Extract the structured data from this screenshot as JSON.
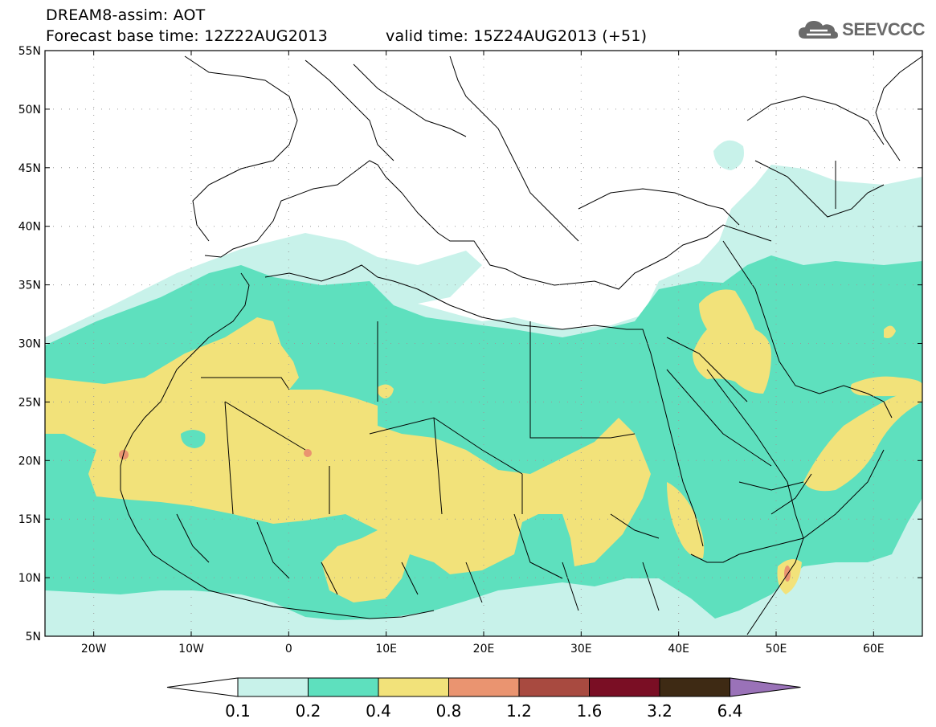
{
  "header": {
    "title_line1": "DREAM8-assim: AOT",
    "forecast_label": "Forecast base time: 12Z22AUG2013",
    "valid_label": "valid time: 15Z24AUG2013 (+51)"
  },
  "logo": {
    "text": "SEEVCCC",
    "icon": "cloud-icon"
  },
  "axes": {
    "lat_labels": [
      "55N",
      "50N",
      "45N",
      "40N",
      "35N",
      "30N",
      "25N",
      "20N",
      "15N",
      "10N",
      "5N"
    ],
    "lon_labels": [
      "20W",
      "10W",
      "0",
      "10E",
      "20E",
      "30E",
      "40E",
      "50E",
      "60E"
    ]
  },
  "colorbar": {
    "labels": [
      "0.1",
      "0.2",
      "0.4",
      "0.8",
      "1.2",
      "1.6",
      "3.2",
      "6.4"
    ],
    "colors": [
      "#c8f2ea",
      "#5ee0be",
      "#f2e27a",
      "#ea9470",
      "#a84a40",
      "#7a0e24",
      "#3e2a14",
      "#9a72b8"
    ],
    "low_extension_color": "#ffffff"
  },
  "field_colors": {
    "band_0_1_0_2": "#c8f2ea",
    "band_0_2_0_4": "#5ee0be",
    "band_0_4_0_8": "#f2e27a",
    "band_0_8_1_2": "#ea9470"
  }
}
